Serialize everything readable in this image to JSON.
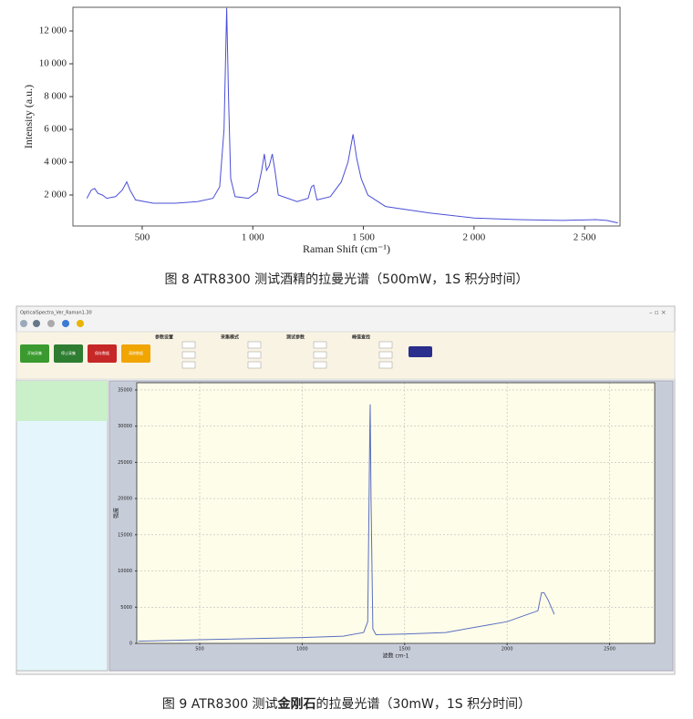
{
  "chart_data": [
    {
      "type": "line",
      "xlabel": "Raman Shift (cm⁻¹)",
      "ylabel": "Intensity (a.u.)",
      "color": "#4a4fd6",
      "x": [
        250,
        270,
        285,
        300,
        320,
        340,
        380,
        410,
        430,
        445,
        470,
        550,
        650,
        750,
        820,
        850,
        870,
        882,
        890,
        900,
        920,
        980,
        1020,
        1040,
        1052,
        1062,
        1075,
        1088,
        1100,
        1115,
        1200,
        1250,
        1265,
        1275,
        1290,
        1350,
        1400,
        1430,
        1453,
        1470,
        1490,
        1520,
        1600,
        1800,
        2000,
        2200,
        2400,
        2550,
        2600,
        2650
      ],
      "values": [
        1800,
        2300,
        2400,
        2100,
        2000,
        1800,
        1900,
        2300,
        2800,
        2300,
        1700,
        1500,
        1500,
        1600,
        1800,
        2500,
        6000,
        13400,
        8000,
        3000,
        1900,
        1800,
        2200,
        3500,
        4500,
        3500,
        3800,
        4500,
        3500,
        2000,
        1600,
        1800,
        2500,
        2600,
        1700,
        1900,
        2800,
        4000,
        5700,
        4200,
        3000,
        2000,
        1300,
        900,
        600,
        500,
        450,
        500,
        450,
        300
      ],
      "xlim": [
        187,
        2660
      ],
      "ylim": [
        111,
        13444
      ],
      "xticks": [
        {
          "value": 500,
          "label": "500"
        },
        {
          "value": 1000,
          "label": "1 000"
        },
        {
          "value": 1500,
          "label": "1 500"
        },
        {
          "value": 2000,
          "label": "2 000"
        },
        {
          "value": 2500,
          "label": "2 500"
        }
      ],
      "yticks": [
        {
          "value": 2000,
          "label": "2 000"
        },
        {
          "value": 4000,
          "label": "4 000"
        },
        {
          "value": 6000,
          "label": "6 000"
        },
        {
          "value": 8000,
          "label": "8 000"
        },
        {
          "value": 10000,
          "label": "10 000"
        },
        {
          "value": 12000,
          "label": "12 000"
        }
      ],
      "grid": false
    },
    {
      "type": "line",
      "xlabel": "波数 cm-1",
      "ylabel": "强度",
      "color": "#5a6fc0",
      "x": [
        200,
        500,
        1000,
        1200,
        1300,
        1320,
        1330,
        1332,
        1336,
        1345,
        1360,
        1500,
        1700,
        1900,
        2000,
        2100,
        2150,
        2168,
        2180,
        2200,
        2230
      ],
      "values": [
        300,
        500,
        800,
        1000,
        1500,
        3000,
        30000,
        33000,
        20000,
        2000,
        1200,
        1300,
        1500,
        2500,
        3000,
        4000,
        4500,
        7000,
        7000,
        6000,
        4000
      ],
      "xlim": [
        193,
        2720
      ],
      "ylim": [
        0,
        36000
      ],
      "xticks": [
        500,
        1000,
        1500,
        2000,
        2500
      ],
      "yticks": [
        0,
        5000,
        10000,
        15000,
        20000,
        25000,
        30000,
        35000
      ],
      "grid": true
    }
  ],
  "window": {
    "title": "OpticalSpectra_Ver_Raman1.30",
    "buttons": [
      "开始采集",
      "停止采集",
      "保存数据",
      "清除数据"
    ],
    "groups": [
      "参数设置",
      "采集模式",
      "测试参数",
      "峰值查找"
    ]
  },
  "captions": {
    "figure_8": "图 8 ATR8300 测试酒精的拉曼光谱（500mW，1S 积分时间）",
    "figure_9": [
      "图 9 ATR8300 测试",
      "金刚石",
      "的拉曼光谱（30mW，1S 积分时间）"
    ]
  }
}
